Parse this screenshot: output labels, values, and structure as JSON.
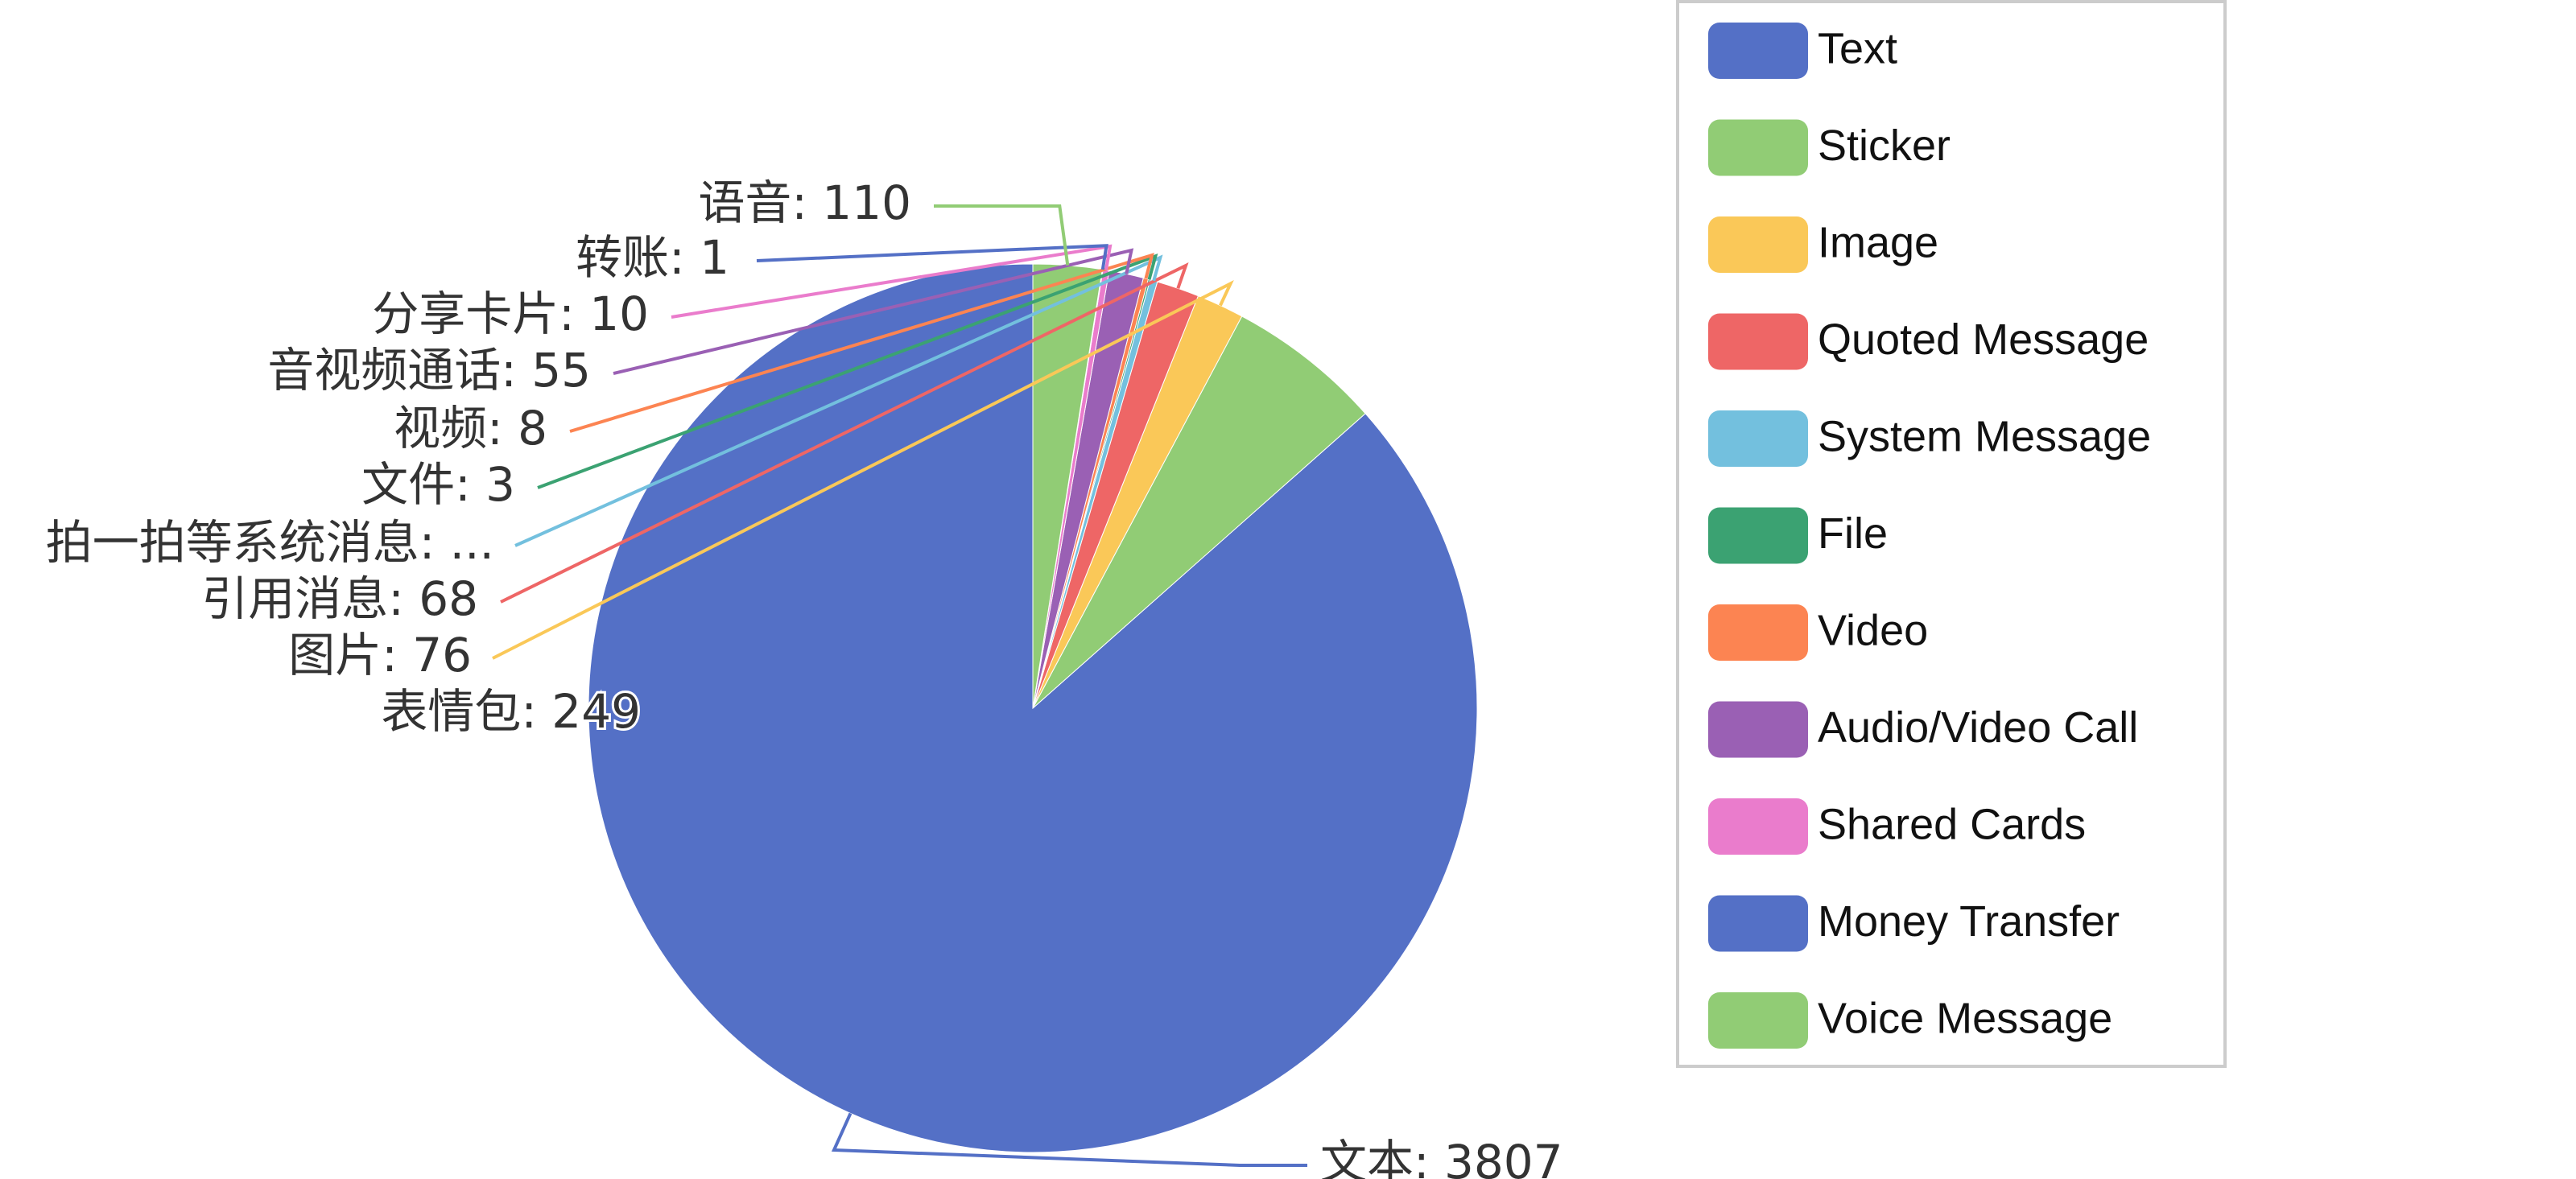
{
  "chart_data": {
    "type": "pie",
    "title": "",
    "slices": [
      {
        "label": "文本",
        "value": 3807,
        "legend": "Text",
        "color": "#5470c6",
        "label_text": "文本: 3807"
      },
      {
        "label": "表情包",
        "value": 249,
        "legend": "Sticker",
        "color": "#91cc75",
        "label_text": "表情包: 249"
      },
      {
        "label": "图片",
        "value": 76,
        "legend": "Image",
        "color": "#fac858",
        "label_text": "图片: 76"
      },
      {
        "label": "引用消息",
        "value": 68,
        "legend": "Quoted Message",
        "color": "#ee6666",
        "label_text": "引用消息: 68"
      },
      {
        "label": "拍一拍等系统消息",
        "value": 12,
        "legend": "System Message",
        "color": "#73c0de",
        "label_text": "拍一拍等系统消息: ..."
      },
      {
        "label": "文件",
        "value": 3,
        "legend": "File",
        "color": "#3ba272",
        "label_text": "文件: 3"
      },
      {
        "label": "视频",
        "value": 8,
        "legend": "Video",
        "color": "#fc8452",
        "label_text": "视频: 8"
      },
      {
        "label": "音视频通话",
        "value": 55,
        "legend": "Audio/Video Call",
        "color": "#9a60b4",
        "label_text": "音视频通话: 55"
      },
      {
        "label": "分享卡片",
        "value": 10,
        "legend": "Shared Cards",
        "color": "#ea7ccc",
        "label_text": "分享卡片: 10"
      },
      {
        "label": "转账",
        "value": 1,
        "legend": "Money Transfer",
        "color": "#5470c6",
        "label_text": "转账: 1"
      },
      {
        "label": "语音",
        "value": 110,
        "legend": "Voice Message",
        "color": "#91cc75",
        "label_text": "语音: 110"
      }
    ],
    "legend_position": "right"
  }
}
